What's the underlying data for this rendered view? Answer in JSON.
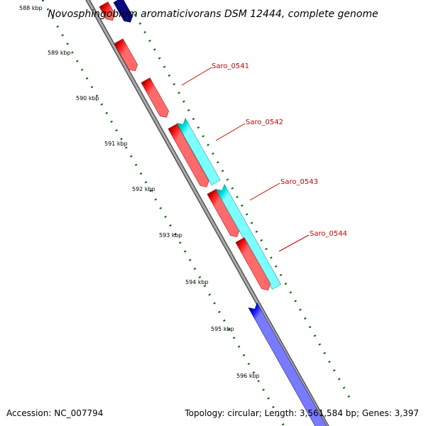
{
  "title": "Novosphingobium aromaticivorans DSM 12444, complete genome",
  "footer": {
    "accession": "Accession: NC_007794",
    "summary": "Topology: circular; Length: 3,561,584 bp; Genes: 3,397"
  },
  "ticks": [
    "588 kbp",
    "589 kbp",
    "590 kbp",
    "591 kbp",
    "592 kbp",
    "593 kbp",
    "594 kbp",
    "595 kbp",
    "596 kbp"
  ],
  "gene_labels": [
    "Saro_0541",
    "Saro_0542",
    "Saro_0543",
    "Saro_0544"
  ],
  "colors": {
    "backbone": "#999999",
    "forward_red": "#ff0000",
    "reverse_cyan": "#00d8d8",
    "blue": "#0000ee",
    "navy": "#000088",
    "ticks": "#006600",
    "label": "#cc0000"
  }
}
